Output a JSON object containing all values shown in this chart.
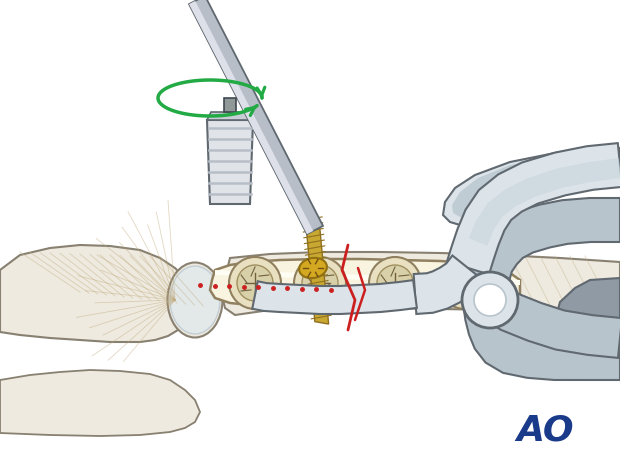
{
  "bg_color": "#ffffff",
  "ao_text": "AO",
  "ao_color": "#1a3a8a",
  "fig_width": 6.2,
  "fig_height": 4.59,
  "dpi": 100,
  "bone_fill": "#eeeae0",
  "bone_edge": "#888070",
  "bone_shadow": "#d8d4c8",
  "plate_fill": "#f0ecd8",
  "plate_edge": "#908060",
  "screw_fill": "#c8a830",
  "screw_dark": "#907020",
  "metal_light": "#e0e4e8",
  "metal_mid": "#b8bec8",
  "metal_dark": "#606870",
  "metal_darker": "#404850",
  "red_color": "#cc2020",
  "green_color": "#22aa44",
  "tendon_color": "#c8b890"
}
